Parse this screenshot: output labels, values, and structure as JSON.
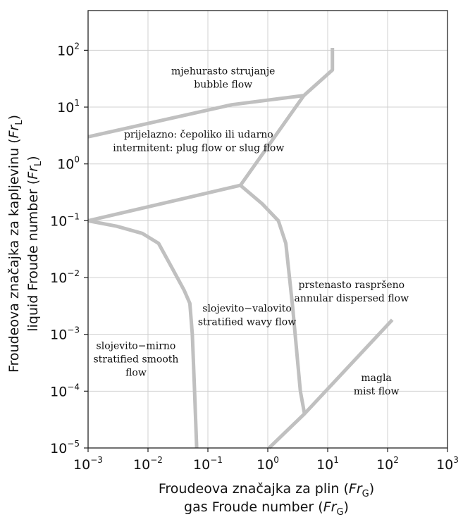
{
  "chart_data": {
    "type": "line",
    "xscale": "log",
    "yscale": "log",
    "xlim": [
      0.001,
      1000
    ],
    "ylim": [
      1e-05,
      500
    ],
    "grid": true,
    "x_ticks": [
      {
        "value": 0.001,
        "base": "10",
        "exp": "−3"
      },
      {
        "value": 0.01,
        "base": "10",
        "exp": "−2"
      },
      {
        "value": 0.1,
        "base": "10",
        "exp": "−1"
      },
      {
        "value": 1,
        "base": "10",
        "exp": "0"
      },
      {
        "value": 10,
        "base": "10",
        "exp": "1"
      },
      {
        "value": 100,
        "base": "10",
        "exp": "2"
      },
      {
        "value": 1000,
        "base": "10",
        "exp": "3"
      }
    ],
    "y_ticks": [
      {
        "value": 1e-05,
        "base": "10",
        "exp": "−5"
      },
      {
        "value": 0.0001,
        "base": "10",
        "exp": "−4"
      },
      {
        "value": 0.001,
        "base": "10",
        "exp": "−3"
      },
      {
        "value": 0.01,
        "base": "10",
        "exp": "−2"
      },
      {
        "value": 0.1,
        "base": "10",
        "exp": "−1"
      },
      {
        "value": 1,
        "base": "10",
        "exp": "0"
      },
      {
        "value": 10,
        "base": "10",
        "exp": "1"
      },
      {
        "value": 100,
        "base": "10",
        "exp": "2"
      }
    ],
    "xlabel": {
      "line1_prefix": "Froudeova značajka za plin (",
      "line1_var": "Fr",
      "line1_sub": "G",
      "line1_suffix": ")",
      "line2_prefix": "gas Froude number (",
      "line2_var": "Fr",
      "line2_sub": "G",
      "line2_suffix": ")"
    },
    "ylabel": {
      "line1_prefix": "Froudeova značajka za kapljevinu (",
      "line1_var": "Fr",
      "line1_sub": "L",
      "line1_suffix": ")",
      "line2_prefix": "liquid Froude number (",
      "line2_var": "Fr",
      "line2_sub": "L",
      "line2_suffix": ")"
    },
    "line_color": "#c0c0c0",
    "grid_color": "#d0d0d0",
    "boundaries": [
      {
        "points": [
          [
            0.001,
            3
          ],
          [
            0.25,
            11
          ],
          [
            4.0,
            16
          ],
          [
            12,
            45
          ],
          [
            12,
            110
          ]
        ]
      },
      {
        "points": [
          [
            0.001,
            0.1
          ],
          [
            0.35,
            0.42
          ],
          [
            4.0,
            16
          ]
        ]
      },
      {
        "points": [
          [
            0.35,
            0.42
          ],
          [
            0.8,
            0.2
          ],
          [
            1.5,
            0.1
          ],
          [
            2.0,
            0.04
          ],
          [
            2.6,
            0.003
          ],
          [
            3.5,
            0.0001
          ],
          [
            4.1,
            4e-05
          ]
        ]
      },
      {
        "points": [
          [
            0.001,
            0.1
          ],
          [
            0.003,
            0.08
          ],
          [
            0.008,
            0.06
          ],
          [
            0.015,
            0.04
          ],
          [
            0.025,
            0.015
          ],
          [
            0.04,
            0.006
          ],
          [
            0.05,
            0.0035
          ],
          [
            0.055,
            0.001
          ],
          [
            0.06,
            0.0001
          ],
          [
            0.065,
            1e-05
          ]
        ]
      },
      {
        "points": [
          [
            1.05,
            1e-05
          ],
          [
            4.1,
            4e-05
          ],
          [
            120,
            0.0018
          ]
        ]
      }
    ],
    "annotations": [
      {
        "x": 0.18,
        "y": 38,
        "lines": [
          "mjehurasto strujanje",
          "bubble flow"
        ]
      },
      {
        "x": 0.07,
        "y": 2.9,
        "lines": [
          "prijelazno: čepoliko ili udarno",
          "intermitent: plug flow or slug flow"
        ]
      },
      {
        "x": 0.45,
        "y": 0.0025,
        "lines": [
          "slojevito−valovito",
          "stratified wavy flow"
        ]
      },
      {
        "x": 0.0063,
        "y": 0.00055,
        "lines": [
          "slojevito−mirno",
          "stratified smooth",
          "flow"
        ]
      },
      {
        "x": 25,
        "y": 0.0065,
        "lines": [
          "prstenasto raspršeno",
          "annular dispersed flow"
        ]
      },
      {
        "x": 65,
        "y": 0.00015,
        "lines": [
          "magla",
          "mist flow"
        ]
      }
    ]
  }
}
